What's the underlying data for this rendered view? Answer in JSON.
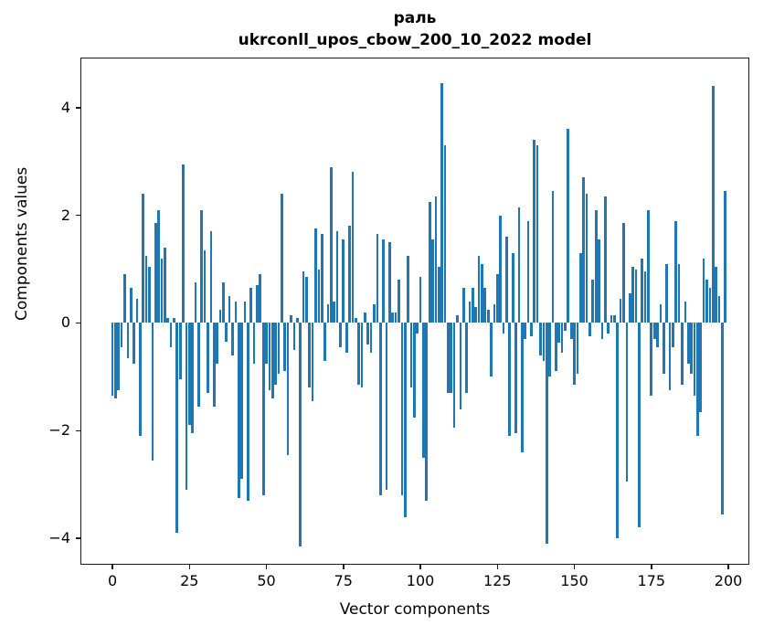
{
  "chart_data": {
    "type": "bar",
    "title_line1": "раль",
    "title_line2": "ukrconll_upos_cbow_200_10_2022 model",
    "xlabel": "Vector components",
    "ylabel": "Components values",
    "xticks": [
      0,
      25,
      50,
      75,
      100,
      125,
      150,
      175,
      200
    ],
    "yticks": [
      4,
      2,
      0,
      -2,
      -4
    ],
    "xlim": [
      -10.4,
      206.8
    ],
    "ylim": [
      -4.49,
      4.93
    ],
    "grid": false,
    "legend": "none",
    "bar_color": "#1f77b4",
    "bar_width_data": 0.8,
    "n_components": 200,
    "values": [
      -1.35,
      -1.4,
      -1.25,
      -0.45,
      0.9,
      -0.65,
      0.65,
      -0.75,
      0.45,
      -2.1,
      2.4,
      1.25,
      1.05,
      -2.55,
      1.85,
      2.1,
      1.2,
      1.4,
      0.1,
      -0.45,
      0.1,
      -3.9,
      -1.05,
      2.95,
      -3.1,
      -1.9,
      -2.05,
      0.75,
      -1.55,
      2.1,
      1.35,
      -1.3,
      1.7,
      -1.55,
      -0.75,
      0.25,
      0.75,
      -0.35,
      0.5,
      -0.6,
      0.4,
      -3.25,
      -2.9,
      0.4,
      -3.3,
      0.65,
      -0.75,
      0.7,
      0.9,
      -3.2,
      -0.75,
      -1.25,
      -1.4,
      -1.15,
      -0.95,
      2.4,
      -0.9,
      -2.45,
      0.15,
      -0.5,
      0.1,
      -4.15,
      0.95,
      0.85,
      -1.2,
      -1.45,
      1.75,
      1.0,
      1.65,
      -0.7,
      0.35,
      2.9,
      0.4,
      1.7,
      -0.45,
      1.55,
      -0.55,
      1.8,
      2.8,
      0.1,
      -1.15,
      -1.2,
      0.2,
      -0.4,
      -0.55,
      0.35,
      1.65,
      -3.2,
      1.55,
      -3.1,
      1.5,
      0.2,
      0.2,
      0.8,
      -3.2,
      -3.6,
      1.25,
      -1.2,
      -1.75,
      -0.2,
      0.85,
      -2.5,
      -3.3,
      2.25,
      1.55,
      2.35,
      1.05,
      4.45,
      3.3,
      -1.3,
      -1.3,
      -1.95,
      0.15,
      -1.6,
      0.65,
      -1.3,
      0.4,
      0.65,
      0.3,
      1.25,
      1.1,
      0.65,
      0.25,
      -1.0,
      0.35,
      0.9,
      2.0,
      -0.2,
      1.6,
      -2.1,
      1.3,
      -2.05,
      2.15,
      -2.4,
      -0.3,
      1.9,
      -0.25,
      3.4,
      3.3,
      -0.6,
      -0.7,
      -4.1,
      -1.0,
      2.45,
      -0.9,
      -0.37,
      -0.55,
      -0.15,
      3.6,
      -0.3,
      -1.15,
      -0.95,
      1.3,
      2.7,
      2.4,
      -0.25,
      0.8,
      2.1,
      1.55,
      -0.3,
      2.35,
      -0.2,
      0.15,
      0.15,
      -4.0,
      0.45,
      1.85,
      -2.95,
      0.55,
      1.05,
      1.0,
      -3.8,
      1.2,
      0.95,
      2.1,
      -1.35,
      -0.3,
      -0.45,
      0.35,
      -0.95,
      1.1,
      -1.25,
      -0.45,
      1.9,
      1.1,
      -1.15,
      0.4,
      -0.75,
      -0.95,
      -1.35,
      -2.1,
      -1.65,
      1.2,
      0.8,
      0.65,
      4.4,
      1.05,
      0.5,
      -3.55,
      2.45
    ]
  }
}
